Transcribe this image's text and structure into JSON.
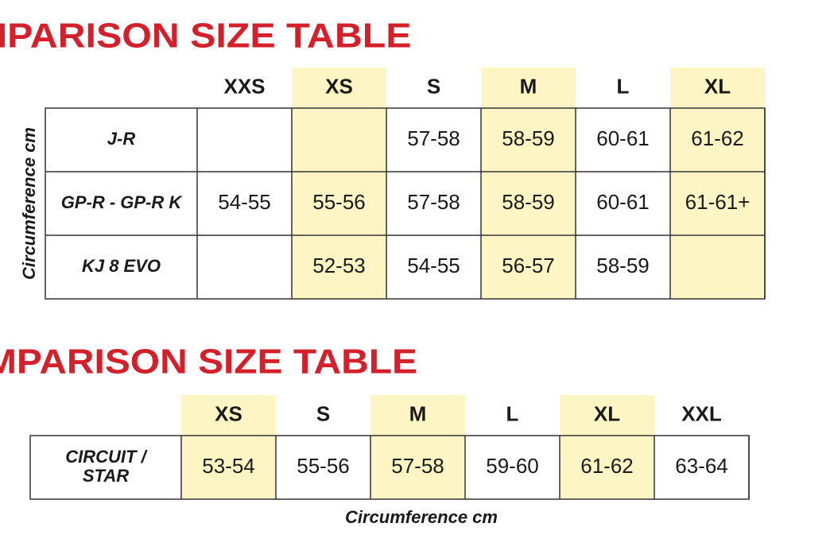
{
  "fia": {
    "title": "FIA HELMETS COMPARISON SIZE TABLE",
    "axis_label": "Circumference cm",
    "columns": [
      "XXS",
      "XS",
      "S",
      "M",
      "L",
      "XL"
    ],
    "rows": [
      {
        "label": "J-R",
        "cells": [
          null,
          null,
          "57-58",
          "58-59",
          "60-61",
          "61-62"
        ]
      },
      {
        "label": "GP-R - GP-R K",
        "cells": [
          "54-55",
          "55-56",
          "57-58",
          "58-59",
          "60-61",
          "61-61+"
        ]
      },
      {
        "label": "KJ 8 EVO",
        "cells": [
          null,
          "52-53",
          "54-55",
          "56-57",
          "58-59",
          null
        ]
      }
    ]
  },
  "ece": {
    "title": "ECE HELMETS COMPARISON SIZE TABLE",
    "axis_label": "Circumference cm",
    "columns": [
      "XS",
      "S",
      "M",
      "L",
      "XL",
      "XXL"
    ],
    "rows": [
      {
        "label": "CIRCUIT / STAR",
        "cells": [
          "53-54",
          "55-56",
          "57-58",
          "59-60",
          "61-62",
          "63-64"
        ]
      }
    ]
  }
}
